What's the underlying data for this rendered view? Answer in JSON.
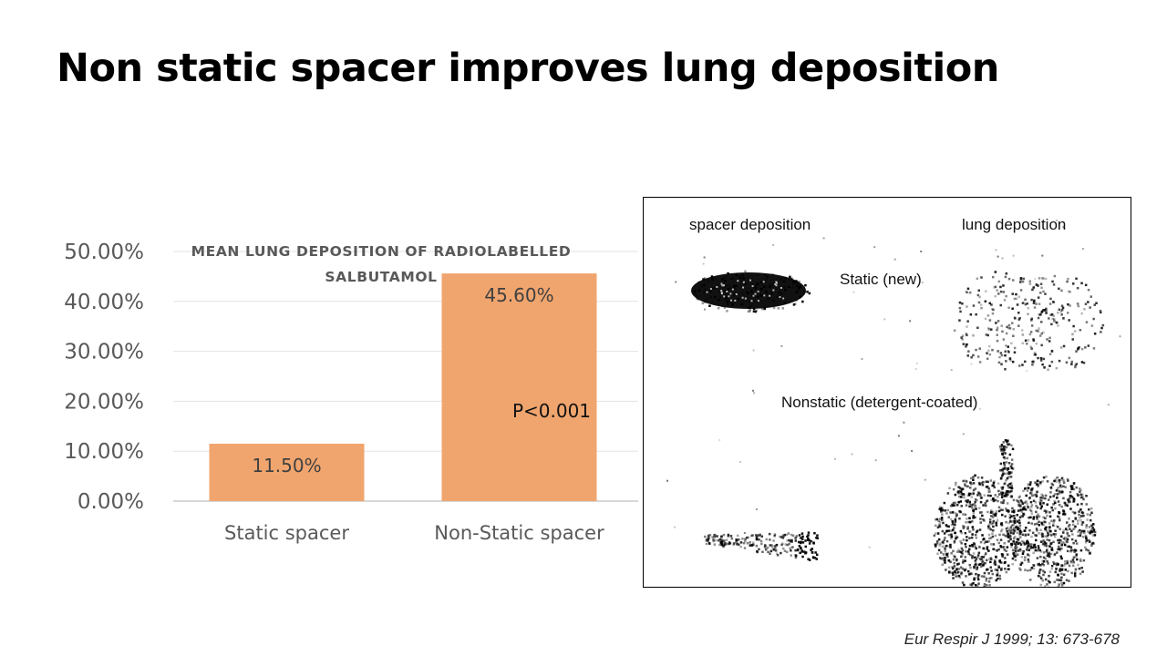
{
  "slide": {
    "title": "Non static spacer improves lung deposition",
    "citation": "Eur Respir J 1999; 13: 673-678"
  },
  "chart_data": {
    "type": "bar",
    "title": "MEAN LUNG DEPOSITION OF RADIOLABELLED SALBUTAMOL",
    "categories": [
      "Static spacer",
      "Non-Static spacer"
    ],
    "values": [
      11.5,
      45.6
    ],
    "data_labels": [
      "11.50%",
      "45.60%"
    ],
    "ylim": [
      0,
      50
    ],
    "yticks": [
      "0.00%",
      "10.00%",
      "20.00%",
      "30.00%",
      "40.00%",
      "50.00%"
    ],
    "annotation": "P<0.001",
    "bar_color": "#F0A56E",
    "grid": true,
    "legend": "none"
  },
  "scan_panel": {
    "labels": {
      "spacer_deposition": "spacer deposition",
      "lung_deposition": "lung deposition",
      "static_new": "Static (new)",
      "nonstatic": "Nonstatic (detergent-coated)"
    }
  }
}
